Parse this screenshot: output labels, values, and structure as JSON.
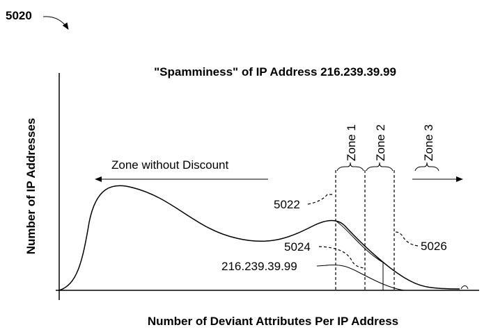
{
  "figure": {
    "ref": "5020",
    "title": "\"Spamminess\" of IP Address 216.239.39.99",
    "y_axis_label": "Number of IP Addresses",
    "x_axis_label": "Number of Deviant Attributes Per IP Address",
    "zone_without_discount": "Zone without Discount",
    "zones": [
      "Zone 1",
      "Zone 2",
      "Zone 3"
    ],
    "callouts": [
      "5022",
      "5024",
      "216.239.39.99",
      "5026"
    ]
  }
}
